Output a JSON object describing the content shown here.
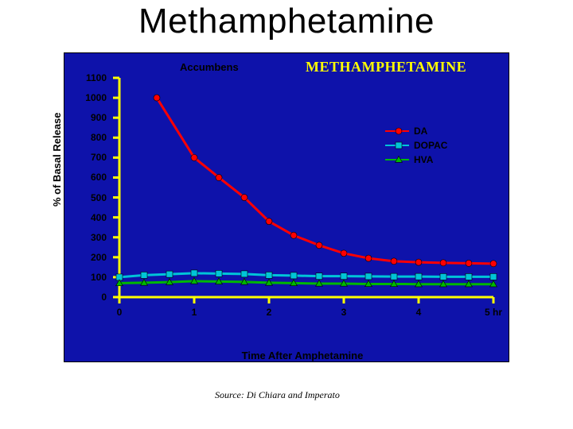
{
  "slide": {
    "title": "Methamphetamine",
    "source": "Source: Di Chiara and Imperato",
    "xlabel": "Time After Amphetamine",
    "ylabel": "% of Basal Release",
    "accumbens_label": "Accumbens",
    "legend_title": "METHAMPHETAMINE",
    "xunit": "hr"
  },
  "chart": {
    "type": "line",
    "background_color": "#0e12aa",
    "plot_bg": "#0e12aa",
    "axis_color": "#ffff00",
    "tick_color": "#ffff00",
    "grid": false,
    "ylim": [
      0,
      1100
    ],
    "ytick_step": 100,
    "xlim": [
      0,
      5
    ],
    "xtick_step": 1,
    "line_width": 3,
    "marker_size": 8,
    "legend": [
      {
        "label": "DA",
        "color": "#ff0000",
        "marker": "circle"
      },
      {
        "label": "DOPAC",
        "color": "#00c4d8",
        "marker": "square"
      },
      {
        "label": "HVA",
        "color": "#00b800",
        "marker": "triangle"
      }
    ],
    "series": {
      "DA": {
        "color": "#ff0000",
        "marker": "circle",
        "x": [
          0.5,
          1.0,
          1.33,
          1.67,
          2.0,
          2.33,
          2.67,
          3.0,
          3.33,
          3.67,
          4.0,
          4.33,
          4.67,
          5.0
        ],
        "y": [
          1000,
          700,
          600,
          500,
          380,
          310,
          260,
          220,
          195,
          180,
          175,
          172,
          170,
          168
        ]
      },
      "DOPAC": {
        "color": "#00c4d8",
        "marker": "square",
        "x": [
          0.0,
          0.33,
          0.67,
          1.0,
          1.33,
          1.67,
          2.0,
          2.33,
          2.67,
          3.0,
          3.33,
          3.67,
          4.0,
          4.33,
          4.67,
          5.0
        ],
        "y": [
          100,
          110,
          115,
          120,
          118,
          116,
          110,
          108,
          105,
          105,
          104,
          103,
          103,
          102,
          102,
          102
        ]
      },
      "HVA": {
        "color": "#00b800",
        "marker": "triangle",
        "x": [
          0.0,
          0.33,
          0.67,
          1.0,
          1.33,
          1.67,
          2.0,
          2.33,
          2.67,
          3.0,
          3.33,
          3.67,
          4.0,
          4.33,
          4.67,
          5.0
        ],
        "y": [
          70,
          72,
          75,
          80,
          78,
          76,
          72,
          70,
          68,
          68,
          66,
          66,
          65,
          65,
          65,
          65
        ]
      }
    }
  }
}
